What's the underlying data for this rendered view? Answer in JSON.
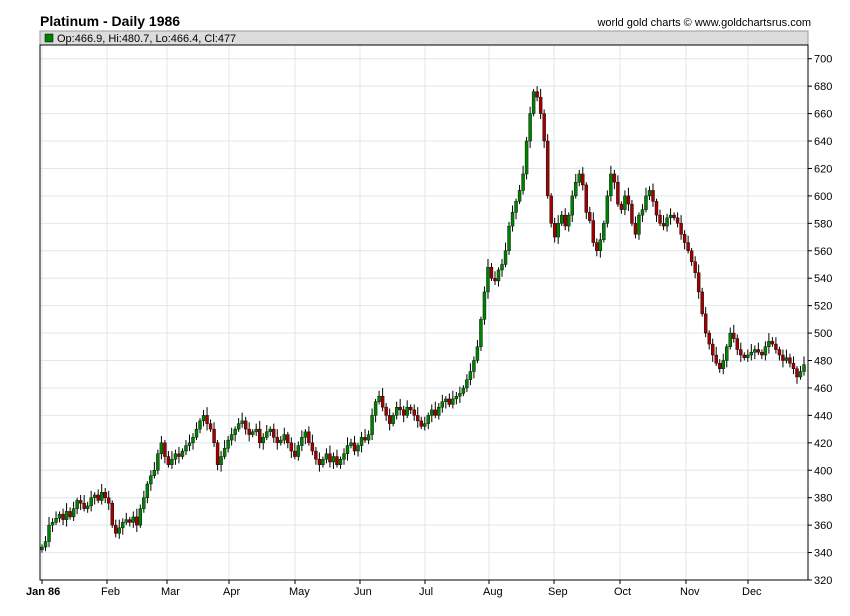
{
  "header": {
    "title": "Platinum - Daily 1986",
    "credit": "world gold charts © www.goldchartsrus.com"
  },
  "ohlc_legend": {
    "text": "Op:466.9, Hi:480.7, Lo:466.4, Cl:477",
    "swatch_color": "#008000"
  },
  "colors": {
    "up": "#008000",
    "down": "#a00000",
    "wick": "#000000",
    "grid": "#dde8ee"
  },
  "chart_data": {
    "type": "candlestick",
    "title": "Platinum - Daily 1986",
    "xlabel": "",
    "ylabel": "",
    "ylim": [
      320,
      710
    ],
    "yticks": [
      320,
      340,
      360,
      380,
      400,
      420,
      440,
      460,
      480,
      500,
      520,
      540,
      560,
      580,
      600,
      620,
      640,
      660,
      680,
      700
    ],
    "grid": true,
    "y_axis_side": "right",
    "month_labels": [
      "Jan 86",
      "Feb",
      "Mar",
      "Apr",
      "May",
      "Jun",
      "Jul",
      "Aug",
      "Sep",
      "Oct",
      "Nov",
      "Dec"
    ],
    "closes": [
      344,
      348,
      360,
      362,
      365,
      368,
      364,
      370,
      366,
      372,
      378,
      376,
      372,
      374,
      380,
      382,
      378,
      384,
      380,
      376,
      360,
      354,
      358,
      362,
      364,
      362,
      366,
      360,
      372,
      380,
      390,
      396,
      400,
      412,
      420,
      410,
      404,
      408,
      412,
      410,
      414,
      418,
      420,
      424,
      430,
      436,
      440,
      434,
      430,
      420,
      404,
      410,
      416,
      422,
      426,
      430,
      434,
      436,
      430,
      426,
      428,
      430,
      420,
      424,
      428,
      430,
      424,
      420,
      422,
      426,
      420,
      414,
      410,
      418,
      424,
      428,
      420,
      414,
      408,
      404,
      408,
      412,
      406,
      410,
      404,
      408,
      412,
      418,
      420,
      414,
      418,
      424,
      422,
      426,
      440,
      450,
      454,
      446,
      440,
      434,
      440,
      446,
      444,
      440,
      446,
      444,
      440,
      436,
      432,
      434,
      440,
      444,
      440,
      446,
      450,
      452,
      448,
      452,
      454,
      456,
      460,
      466,
      472,
      480,
      490,
      510,
      530,
      548,
      540,
      538,
      546,
      550,
      560,
      578,
      588,
      596,
      604,
      616,
      640,
      660,
      676,
      672,
      660,
      640,
      600,
      580,
      570,
      580,
      586,
      578,
      586,
      600,
      610,
      616,
      608,
      588,
      582,
      566,
      560,
      568,
      580,
      600,
      616,
      610,
      594,
      590,
      600,
      594,
      580,
      572,
      586,
      590,
      600,
      604,
      596,
      586,
      580,
      578,
      584,
      586,
      584,
      580,
      572,
      566,
      560,
      552,
      544,
      530,
      514,
      500,
      492,
      484,
      478,
      474,
      480,
      490,
      500,
      496,
      488,
      484,
      482,
      484,
      486,
      488,
      486,
      484,
      490,
      494,
      492,
      488,
      484,
      480,
      482,
      478,
      474,
      468,
      472,
      477
    ]
  }
}
